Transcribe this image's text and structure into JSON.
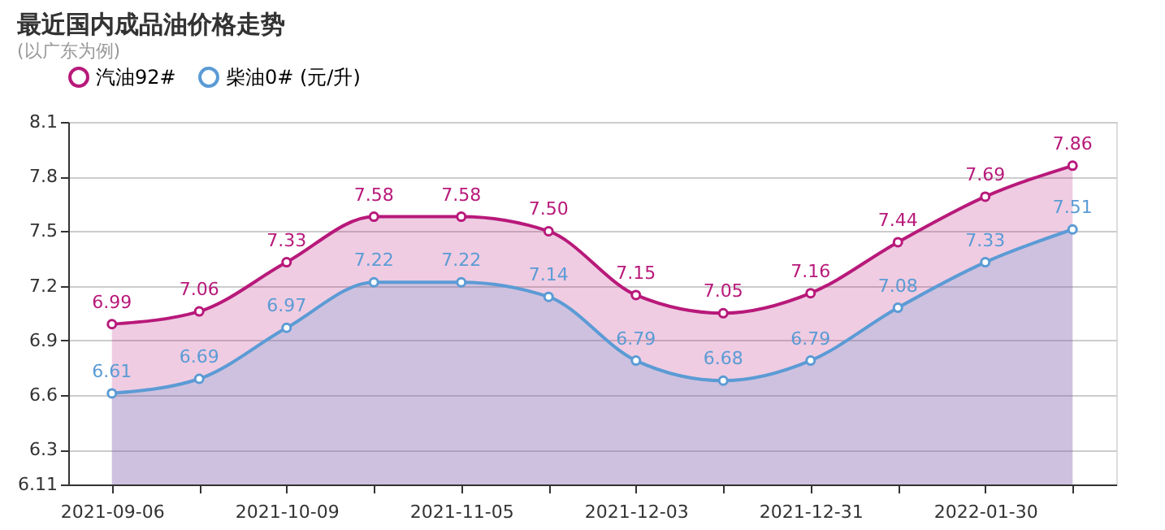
{
  "chart_data": {
    "type": "area",
    "title": "最近国内成品油价格走势",
    "subtitle": "(以广东为例)",
    "categories": [
      "2021-09-06",
      null,
      "2021-10-09",
      null,
      "2021-11-05",
      null,
      "2021-12-03",
      null,
      "2021-12-31",
      null,
      "2022-01-30",
      null
    ],
    "series": [
      {
        "name": "汽油92#",
        "color": "#b8197a",
        "values": [
          6.99,
          7.06,
          7.33,
          7.58,
          7.58,
          7.5,
          7.15,
          7.05,
          7.16,
          7.44,
          7.69,
          7.86
        ],
        "value_labels": [
          "6.99",
          "7.06",
          "7.33",
          "7.58",
          "7.58",
          "7.50",
          "7.15",
          "7.05",
          "7.16",
          "7.44",
          "7.69",
          "7.86"
        ]
      },
      {
        "name": "柴油0# (元/升)",
        "color": "#5b9bd5",
        "values": [
          6.61,
          6.69,
          6.97,
          7.22,
          7.22,
          7.14,
          6.79,
          6.68,
          6.79,
          7.08,
          7.33,
          7.51
        ],
        "value_labels": [
          "6.61",
          "6.69",
          "6.97",
          "7.22",
          "7.22",
          "7.14",
          "6.79",
          "6.68",
          "6.79",
          "7.08",
          "7.33",
          "7.51"
        ]
      }
    ],
    "ylim": [
      6.11,
      8.1
    ],
    "yticks": [
      6.11,
      6.3,
      6.6,
      6.9,
      7.2,
      7.5,
      7.8,
      8.1
    ],
    "grid": "y",
    "legend": "top",
    "marker": "circle",
    "line_style": "solid"
  }
}
